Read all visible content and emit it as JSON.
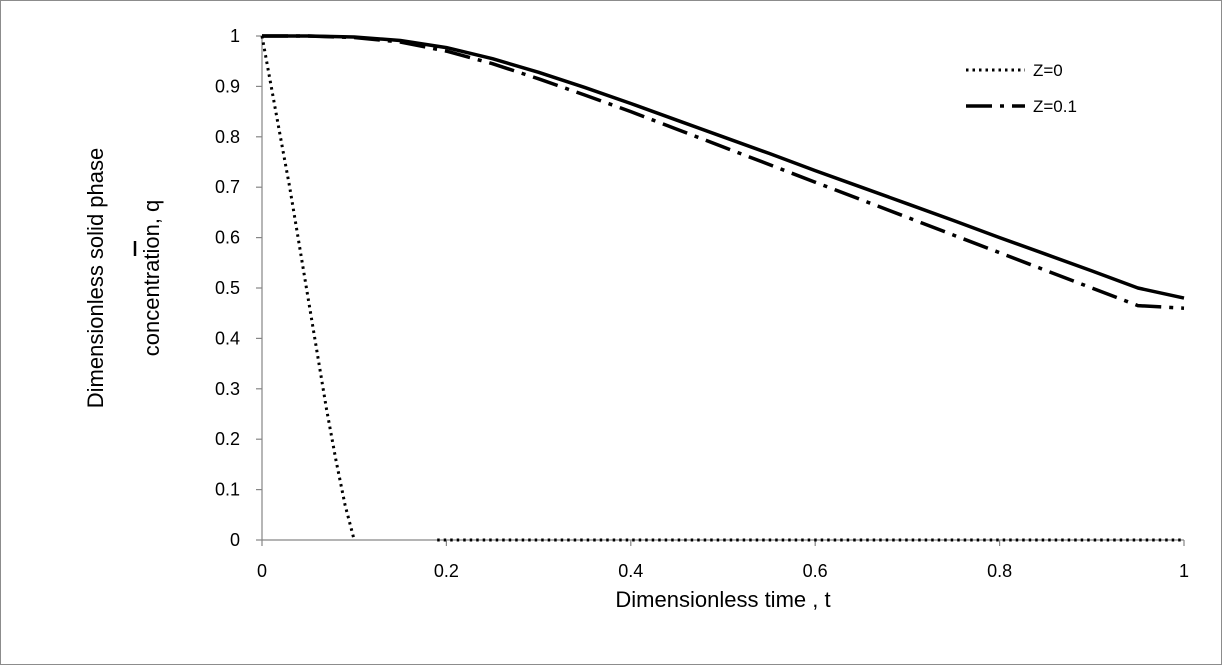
{
  "chart_data": {
    "type": "line",
    "title": "",
    "xlabel": "Dimensionless time , t",
    "ylabel_line1": "Dimensionless solid phase",
    "ylabel_line2": "concentration, q",
    "xlim": [
      0,
      1
    ],
    "ylim": [
      0,
      1
    ],
    "x_ticks": [
      "0",
      "0.2",
      "0.4",
      "0.6",
      "0.8",
      "1"
    ],
    "y_ticks": [
      "0",
      "0.1",
      "0.2",
      "0.3",
      "0.4",
      "0.5",
      "0.6",
      "0.7",
      "0.8",
      "0.9",
      "1"
    ],
    "grid": false,
    "legend_position": "top-right",
    "series": [
      {
        "name": "Z=0",
        "style": "dotted",
        "color": "#000000",
        "x": [
          0,
          0.01,
          0.02,
          0.03,
          0.04,
          0.05,
          0.06,
          0.07,
          0.08,
          0.09,
          0.1,
          0.19,
          0.3,
          0.4,
          0.5,
          0.6,
          0.7,
          0.8,
          0.9,
          1.0
        ],
        "y": [
          1.0,
          0.9,
          0.8,
          0.7,
          0.59,
          0.48,
          0.37,
          0.26,
          0.16,
          0.07,
          0.0,
          0.0,
          0.0,
          0.0,
          0.0,
          0.0,
          0.0,
          0.0,
          0.0,
          0.0
        ],
        "gap_after_index": 10
      },
      {
        "name": "Z=0.1",
        "style": "dash-dot",
        "color": "#000000",
        "x": [
          0,
          0.05,
          0.1,
          0.15,
          0.2,
          0.25,
          0.3,
          0.35,
          0.4,
          0.45,
          0.5,
          0.55,
          0.6,
          0.65,
          0.7,
          0.75,
          0.8,
          0.85,
          0.9,
          0.95,
          1.0
        ],
        "y": [
          1.0,
          1.0,
          0.997,
          0.988,
          0.97,
          0.945,
          0.915,
          0.883,
          0.85,
          0.815,
          0.78,
          0.745,
          0.71,
          0.675,
          0.64,
          0.605,
          0.57,
          0.535,
          0.5,
          0.465,
          0.46
        ]
      },
      {
        "name": "",
        "style": "solid",
        "color": "#000000",
        "x": [
          0,
          0.05,
          0.1,
          0.15,
          0.2,
          0.25,
          0.3,
          0.35,
          0.4,
          0.45,
          0.5,
          0.55,
          0.6,
          0.65,
          0.7,
          0.75,
          0.8,
          0.85,
          0.9,
          0.95,
          1.0
        ],
        "y": [
          1.0,
          1.0,
          0.998,
          0.991,
          0.977,
          0.955,
          0.928,
          0.898,
          0.866,
          0.833,
          0.8,
          0.767,
          0.733,
          0.7,
          0.667,
          0.634,
          0.6,
          0.567,
          0.534,
          0.5,
          0.48
        ]
      }
    ]
  }
}
